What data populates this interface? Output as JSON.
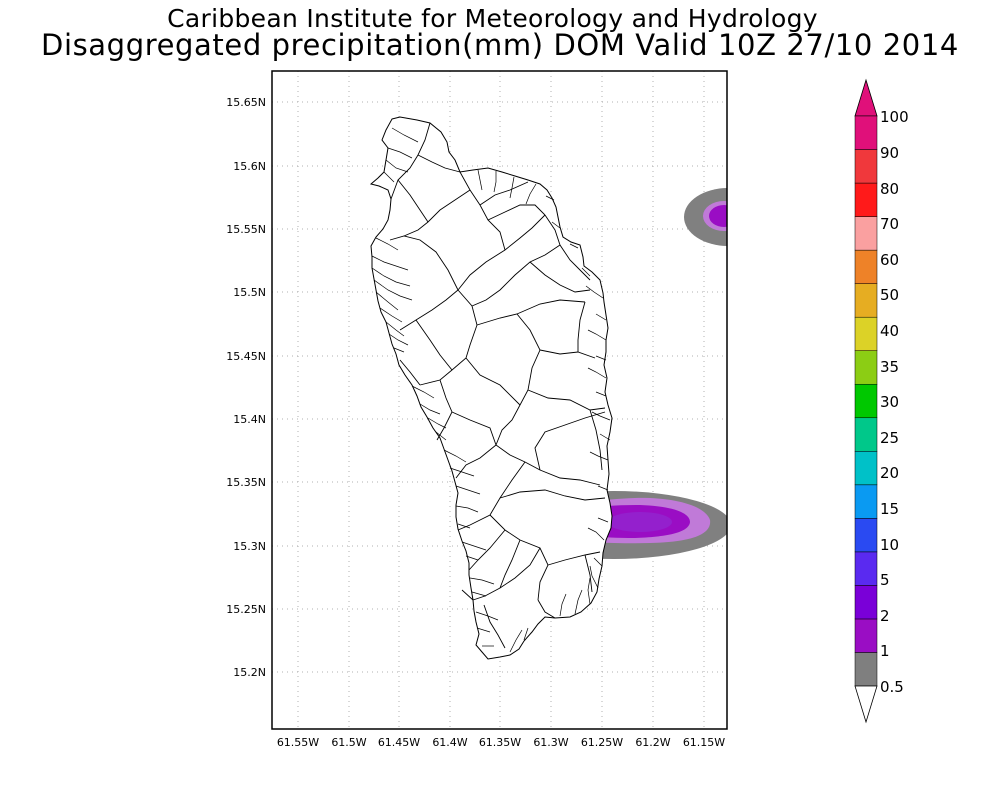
{
  "title": {
    "line1": "Caribbean Institute for Meteorology and Hydrology",
    "line2": "Disaggregated precipitation(mm) DOM Valid 10Z 27/10 2014"
  },
  "map": {
    "lat_labels": [
      "15.65N",
      "15.6N",
      "15.55N",
      "15.5N",
      "15.45N",
      "15.4N",
      "15.35N",
      "15.3N",
      "15.25N",
      "15.2N"
    ],
    "lon_labels": [
      "61.55W",
      "61.5W",
      "61.45W",
      "61.4W",
      "61.35W",
      "61.3W",
      "61.25W",
      "61.2W",
      "61.15W"
    ],
    "grid": "dotted",
    "features": [
      "dominica-island-outline",
      "watershed-boundaries"
    ],
    "rain_areas": [
      {
        "name": "south-east",
        "levels": [
          "0.5",
          "1",
          "2"
        ]
      },
      {
        "name": "north-east",
        "levels": [
          "0.5",
          "1",
          "2"
        ]
      }
    ]
  },
  "colorbar": {
    "labels": [
      "0.5",
      "1",
      "2",
      "5",
      "10",
      "15",
      "20",
      "25",
      "30",
      "35",
      "40",
      "50",
      "60",
      "70",
      "80",
      "90",
      "100"
    ],
    "colors": [
      "#7f7f7f",
      "#9a0dc4",
      "#7a00d8",
      "#5a2af0",
      "#2a4af2",
      "#0a9af2",
      "#00c1c8",
      "#00c88a",
      "#00c800",
      "#8ccd14",
      "#dcd227",
      "#e6ad22",
      "#ee8228",
      "#faa0a0",
      "#ff1a1a",
      "#f0383c",
      "#e0107a"
    ],
    "below_color": "#ffffff",
    "above_color": "#e0107a"
  }
}
